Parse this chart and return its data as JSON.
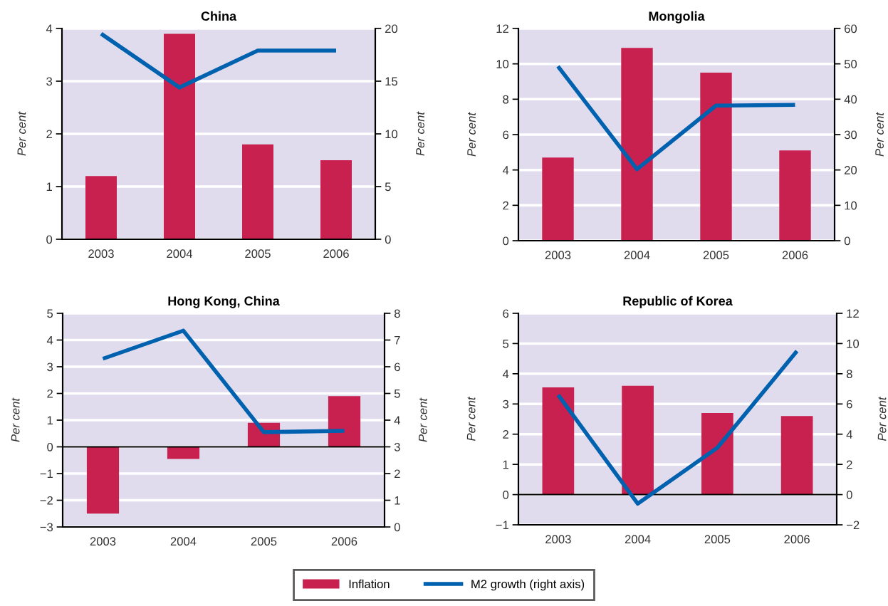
{
  "chart_data": [
    {
      "type": "bar",
      "title": "China",
      "ylabel": "Per cent",
      "y2label": "Per cent",
      "categories": [
        "2003",
        "2004",
        "2005",
        "2006"
      ],
      "series": [
        {
          "name": "Inflation",
          "color": "#c8214f",
          "values": [
            1.2,
            3.9,
            1.8,
            1.5
          ]
        },
        {
          "name": "M2 growth (right axis)",
          "type": "line",
          "axis": "y2",
          "color": "#0061ae",
          "values": [
            19.5,
            14.4,
            17.9,
            17.9
          ]
        }
      ],
      "ylim": [
        0,
        4
      ],
      "yticks": [
        0,
        1,
        2,
        3,
        4
      ],
      "y2lim": [
        0,
        20
      ],
      "y2ticks": [
        0,
        5,
        10,
        15,
        20
      ],
      "grid": "y",
      "legend": "bottom"
    },
    {
      "type": "bar",
      "title": "Mongolia",
      "ylabel": "Per cent",
      "y2label": "Per cent",
      "categories": [
        "2003",
        "2004",
        "2005",
        "2006"
      ],
      "series": [
        {
          "color": "#c8214f",
          "values": [
            4.7,
            10.9,
            9.5,
            5.1
          ]
        },
        {
          "type": "line",
          "axis": "y2",
          "color": "#0061ae",
          "values": [
            49.3,
            20.2,
            38.2,
            38.4
          ]
        }
      ],
      "ylim": [
        0,
        12
      ],
      "yticks": [
        0,
        2,
        4,
        6,
        8,
        10,
        12
      ],
      "y2lim": [
        0,
        60
      ],
      "y2ticks": [
        0,
        10,
        20,
        30,
        40,
        50,
        60
      ],
      "grid": "y"
    },
    {
      "type": "bar",
      "title": "Hong Kong, China",
      "ylabel": "Per cent",
      "y2label": "Per cent",
      "categories": [
        "2003",
        "2004",
        "2005",
        "2006"
      ],
      "series": [
        {
          "color": "#c8214f",
          "values": [
            -2.5,
            -0.45,
            0.9,
            1.9
          ]
        },
        {
          "type": "line",
          "axis": "y2",
          "color": "#0061ae",
          "values": [
            6.3,
            7.35,
            3.55,
            3.6
          ]
        }
      ],
      "ylim": [
        -3,
        5
      ],
      "yticks": [
        {
          "value": -3,
          "label": "−3"
        },
        {
          "value": -2,
          "label": "−2"
        },
        {
          "value": -1,
          "label": "−1"
        },
        0,
        1,
        2,
        3,
        4,
        5
      ],
      "y2lim": [
        0,
        8
      ],
      "y2ticks": [
        0,
        1,
        2,
        3,
        4,
        5,
        6,
        7,
        8
      ],
      "grid": "y"
    },
    {
      "type": "bar",
      "title": "Republic of Korea",
      "ylabel": "Per cent",
      "y2label": "Per cent",
      "categories": [
        "2003",
        "2004",
        "2005",
        "2006"
      ],
      "series": [
        {
          "color": "#c8214f",
          "values": [
            3.55,
            3.6,
            2.7,
            2.6
          ]
        },
        {
          "type": "line",
          "axis": "y2",
          "color": "#0061ae",
          "values": [
            6.6,
            -0.6,
            3.1,
            9.5
          ]
        }
      ],
      "ylim": [
        -1,
        6
      ],
      "yticks": [
        {
          "value": -1,
          "label": "−1"
        },
        0,
        1,
        2,
        3,
        4,
        5,
        6
      ],
      "y2lim": [
        -2,
        12
      ],
      "y2ticks": [
        {
          "value": -2,
          "label": "−2"
        },
        0,
        2,
        4,
        6,
        8,
        10,
        12
      ],
      "grid": "y"
    }
  ]
}
